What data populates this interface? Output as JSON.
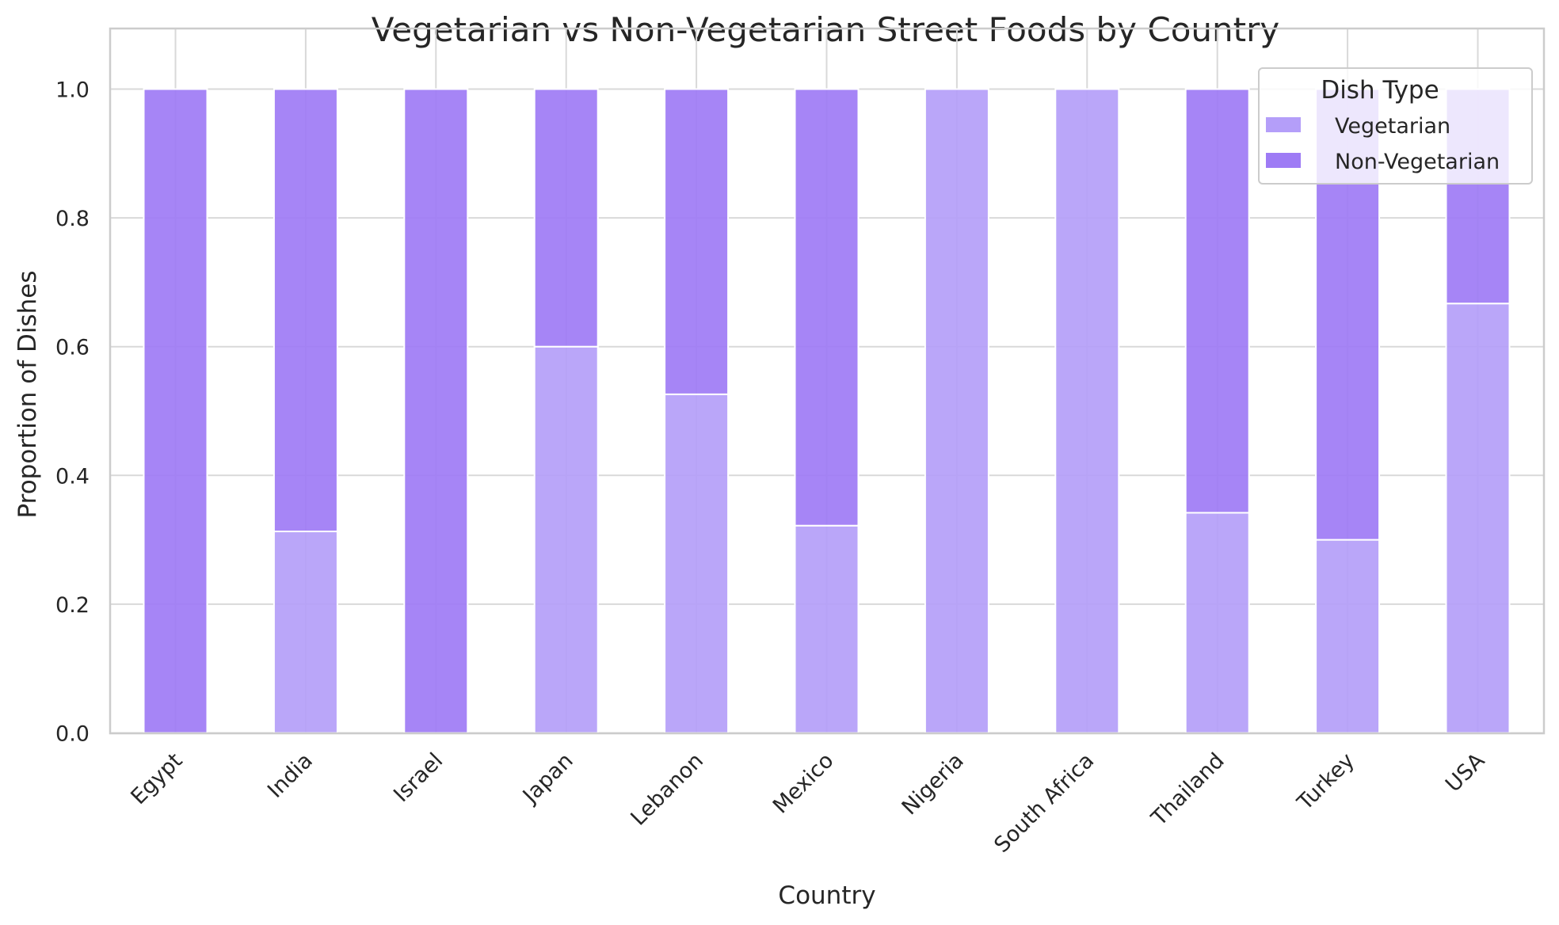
{
  "chart_data": {
    "type": "bar",
    "stacked": true,
    "title": "Vegetarian vs Non-Vegetarian Street Foods by Country",
    "xlabel": "Country",
    "ylabel": "Proportion of Dishes",
    "ylim": [
      0,
      1.05
    ],
    "yticks": [
      "0.0",
      "0.2",
      "0.4",
      "0.6",
      "0.8",
      "1.0"
    ],
    "ytick_values": [
      0,
      0.2,
      0.4,
      0.6,
      0.8,
      1.0
    ],
    "grid": true,
    "categories": [
      "Egypt",
      "India",
      "Israel",
      "Japan",
      "Lebanon",
      "Mexico",
      "Nigeria",
      "South Africa",
      "Thailand",
      "Turkey",
      "USA"
    ],
    "series": [
      {
        "name": "Vegetarian",
        "color": "#b49ef9",
        "values": [
          0.0,
          0.313,
          0.0,
          0.6,
          0.526,
          0.322,
          1.0,
          1.0,
          0.342,
          0.3,
          0.667
        ]
      },
      {
        "name": "Non-Vegetarian",
        "color": "#9e7bf5",
        "values": [
          1.0,
          0.687,
          1.0,
          0.4,
          0.474,
          0.678,
          0.0,
          0.0,
          0.658,
          0.7,
          0.333
        ]
      }
    ],
    "legend": {
      "title": "Dish Type",
      "position": "top-right"
    }
  }
}
